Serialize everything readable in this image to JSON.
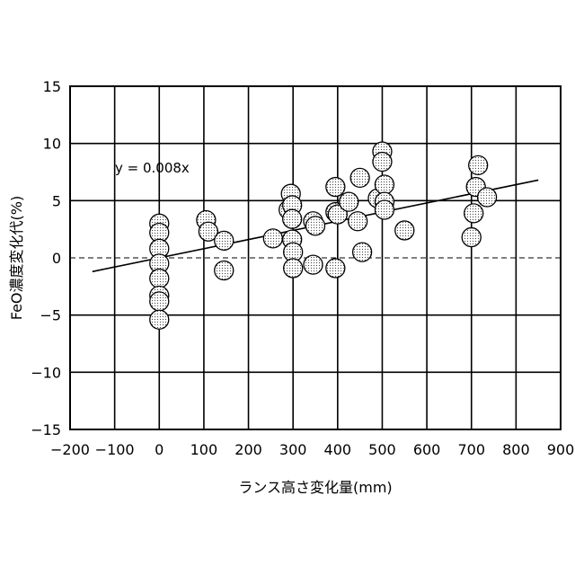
{
  "chart_data": {
    "type": "scatter",
    "title": "",
    "xlabel": "ランス高さ変化量(mm)",
    "ylabel": "FeO濃度変化代(%)",
    "xlim": [
      -200,
      900
    ],
    "ylim": [
      -15,
      15
    ],
    "xticks": [
      -200,
      -100,
      0,
      100,
      200,
      300,
      400,
      500,
      600,
      700,
      800,
      900
    ],
    "yticks": [
      -15,
      -10,
      -5,
      0,
      5,
      10,
      15
    ],
    "grid": true,
    "zero_line": "dashed",
    "marker": "dotted-circle",
    "points": [
      {
        "x": 0,
        "y": 3.0
      },
      {
        "x": 0,
        "y": 2.2
      },
      {
        "x": 0,
        "y": 0.8
      },
      {
        "x": 0,
        "y": -0.5
      },
      {
        "x": 0,
        "y": -1.8
      },
      {
        "x": 0,
        "y": -3.3
      },
      {
        "x": 0,
        "y": -3.8
      },
      {
        "x": 0,
        "y": -5.4
      },
      {
        "x": 105,
        "y": 3.3
      },
      {
        "x": 110,
        "y": 2.3
      },
      {
        "x": 145,
        "y": 1.5
      },
      {
        "x": 145,
        "y": -1.1
      },
      {
        "x": 255,
        "y": 1.7
      },
      {
        "x": 290,
        "y": 4.2
      },
      {
        "x": 295,
        "y": 5.6
      },
      {
        "x": 298,
        "y": 4.6
      },
      {
        "x": 298,
        "y": 3.4
      },
      {
        "x": 298,
        "y": 1.6
      },
      {
        "x": 300,
        "y": 0.5
      },
      {
        "x": 300,
        "y": -0.9
      },
      {
        "x": 345,
        "y": 3.2
      },
      {
        "x": 350,
        "y": 2.8
      },
      {
        "x": 345,
        "y": -0.6
      },
      {
        "x": 395,
        "y": 6.2
      },
      {
        "x": 395,
        "y": 4.0
      },
      {
        "x": 400,
        "y": 3.8
      },
      {
        "x": 395,
        "y": -0.9
      },
      {
        "x": 425,
        "y": 4.9
      },
      {
        "x": 445,
        "y": 3.2
      },
      {
        "x": 450,
        "y": 7.0
      },
      {
        "x": 455,
        "y": 0.5
      },
      {
        "x": 490,
        "y": 5.2
      },
      {
        "x": 500,
        "y": 9.3
      },
      {
        "x": 500,
        "y": 8.4
      },
      {
        "x": 505,
        "y": 6.4
      },
      {
        "x": 505,
        "y": 4.9
      },
      {
        "x": 505,
        "y": 4.2
      },
      {
        "x": 550,
        "y": 2.4
      },
      {
        "x": 700,
        "y": 1.8
      },
      {
        "x": 705,
        "y": 3.9
      },
      {
        "x": 710,
        "y": 6.2
      },
      {
        "x": 715,
        "y": 8.1
      },
      {
        "x": 735,
        "y": 5.3
      }
    ],
    "trendline": {
      "equation": "y = 0.008x",
      "slope": 0.008,
      "intercept": 0,
      "x_range": [
        -150,
        850
      ]
    }
  }
}
